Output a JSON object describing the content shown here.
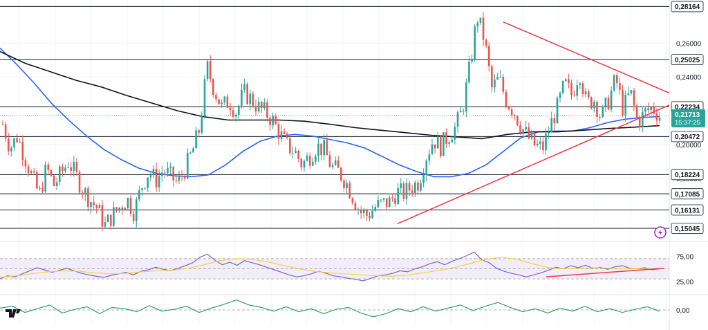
{
  "chart_data": [
    {
      "type": "candlestick",
      "title": "",
      "xlabel": "",
      "ylabel": "",
      "ylim": [
        0.1435,
        0.2855
      ],
      "grid": true,
      "horizontal_levels": [
        "0,28164",
        "0,25025",
        "0,22234",
        "0,20472",
        "0,18224",
        "0,17085",
        "0,16131",
        "0,15045"
      ],
      "horizontal_level_values": [
        0.28164,
        0.25025,
        0.22234,
        0.20472,
        0.18224,
        0.17085,
        0.16131,
        0.15045
      ],
      "axis_ticks": [
        "0,26000",
        "0,24000",
        "0,20000",
        "0,18000"
      ],
      "axis_tick_values": [
        0.26,
        0.24,
        0.2,
        0.18
      ],
      "current_price": "0,21713",
      "current_price_value": 0.21713,
      "countdown": "15:37:25",
      "ohlc_anchors": [
        0.212,
        0.198,
        0.205,
        0.193,
        0.181,
        0.17,
        0.186,
        0.176,
        0.183,
        0.19,
        0.182,
        0.173,
        0.167,
        0.162,
        0.152,
        0.158,
        0.163,
        0.168,
        0.16,
        0.175,
        0.184,
        0.179,
        0.185,
        0.181,
        0.177,
        0.186,
        0.196,
        0.21,
        0.246,
        0.232,
        0.222,
        0.226,
        0.219,
        0.231,
        0.227,
        0.222,
        0.219,
        0.214,
        0.206,
        0.199,
        0.196,
        0.188,
        0.193,
        0.199,
        0.197,
        0.187,
        0.184,
        0.178,
        0.169,
        0.16,
        0.158,
        0.163,
        0.165,
        0.166,
        0.172,
        0.171,
        0.175,
        0.178,
        0.193,
        0.203,
        0.199,
        0.205,
        0.21,
        0.221,
        0.246,
        0.276,
        0.262,
        0.233,
        0.239,
        0.226,
        0.22,
        0.211,
        0.204,
        0.199,
        0.198,
        0.211,
        0.222,
        0.236,
        0.229,
        0.244,
        0.224,
        0.227,
        0.216,
        0.226,
        0.239,
        0.221,
        0.231,
        0.213,
        0.219,
        0.222,
        0.217
      ],
      "series": [
        {
          "name": "",
          "type": "moving-average",
          "color": "#2962ff",
          "values": [
            0.257,
            0.247,
            0.236,
            0.224,
            0.214,
            0.205,
            0.197,
            0.191,
            0.186,
            0.183,
            0.1815,
            0.181,
            0.182,
            0.188,
            0.196,
            0.202,
            0.205,
            0.206,
            0.205,
            0.203,
            0.201,
            0.198,
            0.193,
            0.188,
            0.184,
            0.181,
            0.181,
            0.183,
            0.188,
            0.196,
            0.204,
            0.2075,
            0.208,
            0.208,
            0.21,
            0.213,
            0.215,
            0.216,
            0.2165
          ]
        },
        {
          "name": "",
          "type": "moving-average",
          "color": "#111111",
          "values": [
            0.255,
            0.248,
            0.243,
            0.238,
            0.234,
            0.229,
            0.2245,
            0.22,
            0.2165,
            0.2145,
            0.2145,
            0.2145,
            0.2138,
            0.212,
            0.21,
            0.2085,
            0.207,
            0.2055,
            0.2045,
            0.2035,
            0.206,
            0.2075,
            0.2075,
            0.2085,
            0.2095,
            0.2103,
            0.2112
          ]
        }
      ]
    },
    {
      "type": "line",
      "title": "",
      "ylim": [
        0,
        100
      ],
      "axis_ticks": [
        "75,00",
        "25,00"
      ],
      "axis_tick_values": [
        75,
        25
      ],
      "series": [
        {
          "name": "",
          "color": "#7b61c8",
          "values": [
            30,
            36,
            34,
            40,
            46,
            52,
            48,
            43,
            47,
            51,
            46,
            41,
            38,
            35,
            33,
            37,
            40,
            43,
            38,
            45,
            48,
            53,
            49,
            46,
            51,
            56,
            62,
            73,
            79,
            67,
            58,
            63,
            57,
            66,
            62,
            58,
            53,
            48,
            43,
            38,
            34,
            36,
            40,
            45,
            41,
            36,
            34,
            31,
            29,
            26,
            31,
            36,
            38,
            41,
            46,
            44,
            50,
            54,
            60,
            64,
            58,
            65,
            70,
            76,
            83,
            68,
            62,
            51,
            45,
            41,
            38,
            34,
            38,
            42,
            47,
            53,
            50,
            56,
            52,
            57,
            51,
            53,
            49,
            54,
            56,
            51,
            50,
            52,
            48,
            50
          ]
        },
        {
          "name": "",
          "color": "#f4d03f",
          "values": [
            33,
            36,
            40,
            44,
            46,
            45,
            42,
            40,
            41,
            44,
            46,
            47,
            51,
            58,
            66,
            70,
            69,
            64,
            57,
            50,
            45,
            42,
            40,
            38,
            36,
            35,
            38,
            42,
            47,
            53,
            61,
            69,
            73,
            68,
            59,
            52,
            50,
            51,
            52,
            51,
            50,
            50,
            50
          ]
        }
      ]
    },
    {
      "type": "line",
      "title": "",
      "axis_ticks": [
        "0,00"
      ],
      "axis_tick_values": [
        0
      ],
      "series": [
        {
          "name": "",
          "color": "#1f9d55",
          "values": [
            0.3,
            0.6,
            -0.4,
            0.2,
            0.8,
            -0.5,
            0.1,
            0.5,
            -0.6,
            0.4,
            0.2,
            -0.3,
            0.7,
            -0.2,
            0.1,
            0.6,
            -0.4,
            0.3,
            0.9,
            1.6,
            0.8,
            0.4,
            -0.2,
            0.5,
            -0.3,
            0.2,
            -0.6,
            0.1,
            0.4,
            -0.5,
            -1.1,
            -0.6,
            0.2,
            -0.3,
            0.5,
            -0.2,
            0.3,
            0.8,
            -0.1,
            0.6,
            1.2,
            0.4,
            -0.3,
            0.2,
            -0.5,
            0.3,
            -0.2,
            0.6,
            -0.3,
            0.2,
            -0.4,
            0.1,
            0.5,
            -0.2
          ]
        }
      ]
    }
  ],
  "colors": {
    "bull": "#26a69a",
    "bear": "#ef5350",
    "trendline": "#f23645",
    "level_line": "#131722",
    "ma_fast": "#2962ff",
    "ma_slow": "#111111",
    "rsi": "#7b61c8",
    "rsi_ma": "#f4d03f",
    "momentum": "#1f9d55",
    "price_tag": "#26a69a",
    "alert_icon": "#9c27b0"
  },
  "brand": {
    "logo": "TradingView"
  },
  "icons": {
    "alert": "lightning-alert-icon"
  }
}
